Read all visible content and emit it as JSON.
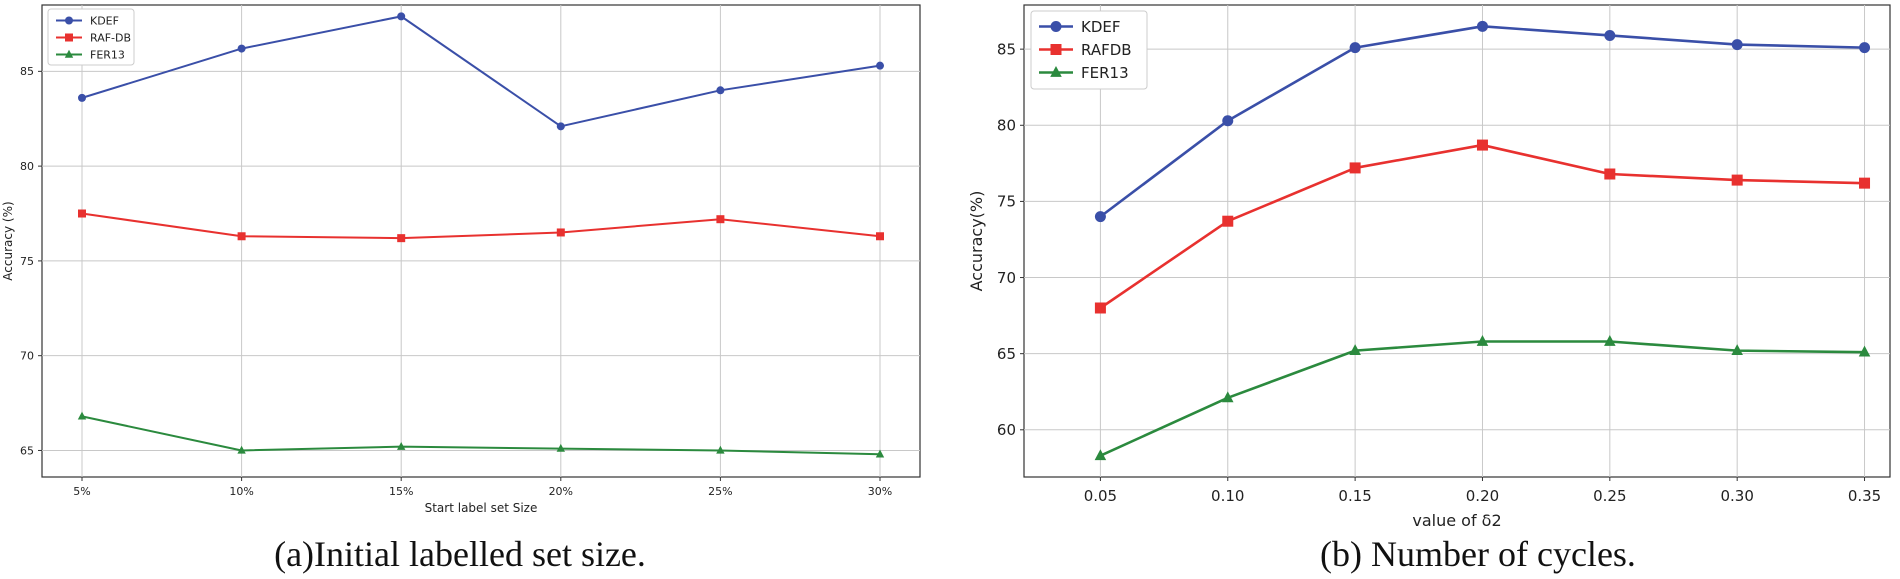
{
  "chart_data": [
    {
      "type": "line",
      "title": "",
      "xlabel": "Start label set Size",
      "ylabel": "Accuracy (%)",
      "categories": [
        "5%",
        "10%",
        "15%",
        "20%",
        "25%",
        "30%"
      ],
      "ylim": [
        63.6,
        88.5
      ],
      "yticks": [
        65,
        70,
        75,
        80,
        85
      ],
      "grid": true,
      "legend_position": "top-left",
      "series": [
        {
          "name": "KDEF",
          "color": "#3a4fa8",
          "marker": "circle",
          "values": [
            83.6,
            86.2,
            87.9,
            82.1,
            84.0,
            85.3
          ]
        },
        {
          "name": "RAF-DB",
          "color": "#e8312f",
          "marker": "square",
          "values": [
            77.5,
            76.3,
            76.2,
            76.5,
            77.2,
            76.3
          ]
        },
        {
          "name": "FER13",
          "color": "#2b8a3e",
          "marker": "triangle",
          "values": [
            66.8,
            65.0,
            65.2,
            65.1,
            65.0,
            64.8
          ]
        }
      ],
      "caption": "(a)Initial labelled set size."
    },
    {
      "type": "line",
      "title": "",
      "xlabel": "value of δ2",
      "ylabel": "Accuracy(%)",
      "x": [
        0.05,
        0.1,
        0.15,
        0.2,
        0.25,
        0.3,
        0.35
      ],
      "xtick_labels": [
        "0.05",
        "0.10",
        "0.15",
        "0.20",
        "0.25",
        "0.30",
        "0.35"
      ],
      "xlim": [
        0.02,
        0.36
      ],
      "ylim": [
        56.9,
        87.9
      ],
      "yticks": [
        60,
        65,
        70,
        75,
        80,
        85
      ],
      "grid": true,
      "legend_position": "top-left",
      "series": [
        {
          "name": "KDEF",
          "color": "#3a4fa8",
          "marker": "circle",
          "values": [
            74.0,
            80.3,
            85.1,
            86.5,
            85.9,
            85.3,
            85.1
          ]
        },
        {
          "name": "RAFDB",
          "color": "#e8312f",
          "marker": "square",
          "values": [
            68.0,
            73.7,
            77.2,
            78.7,
            76.8,
            76.4,
            76.2
          ]
        },
        {
          "name": "FER13",
          "color": "#2b8a3e",
          "marker": "triangle",
          "values": [
            58.3,
            62.1,
            65.2,
            65.8,
            65.8,
            65.2,
            65.1
          ]
        }
      ],
      "caption": "(b) Number of cycles."
    }
  ]
}
